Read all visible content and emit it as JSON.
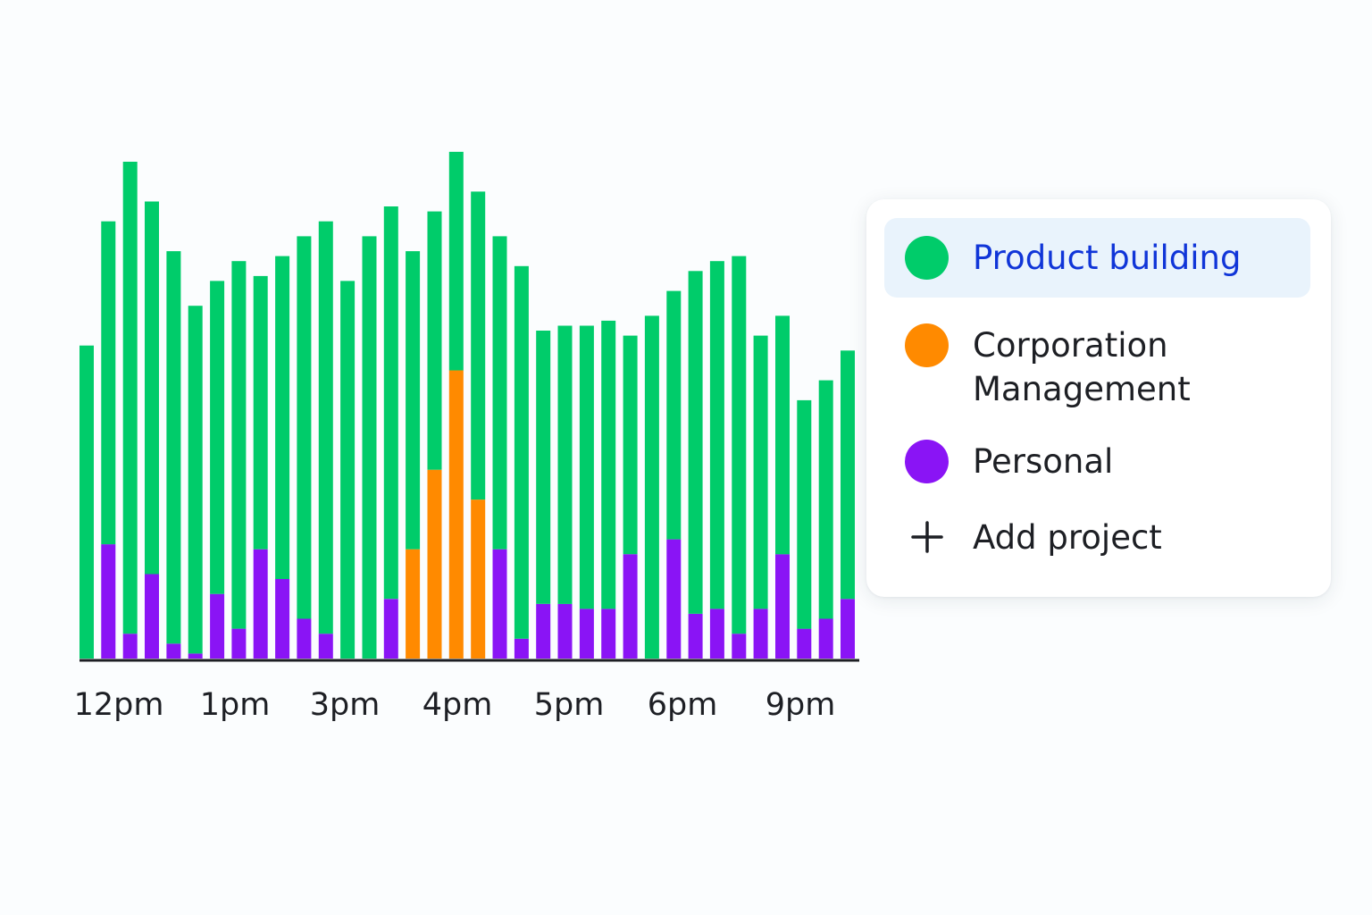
{
  "chart_data": {
    "type": "bar",
    "stacked": true,
    "x_tick_labels": [
      "12pm",
      "1pm",
      "3pm",
      "4pm",
      "5pm",
      "6pm",
      "9pm"
    ],
    "ylim": [
      0,
      100
    ],
    "grid": false,
    "legend_placement": "right",
    "series": [
      {
        "name": "Personal",
        "color": "#8a14f5",
        "values": [
          0,
          23,
          5,
          17,
          3,
          1,
          13,
          6,
          22,
          16,
          8,
          5,
          0,
          0,
          12,
          0,
          0,
          0,
          0,
          22,
          4,
          11,
          11,
          10,
          10,
          21,
          0,
          24,
          9,
          10,
          5,
          10,
          21,
          6,
          8,
          12
        ]
      },
      {
        "name": "Corporation Management",
        "color": "#ff8a00",
        "values": [
          0,
          0,
          0,
          0,
          0,
          0,
          0,
          0,
          0,
          0,
          0,
          0,
          0,
          0,
          0,
          22,
          38,
          58,
          32,
          0,
          0,
          0,
          0,
          0,
          0,
          0,
          0,
          0,
          0,
          0,
          0,
          0,
          0,
          0,
          0,
          0
        ]
      },
      {
        "name": "Product building",
        "color": "#00cc6a",
        "values": [
          63,
          65,
          95,
          75,
          79,
          70,
          63,
          74,
          55,
          65,
          77,
          83,
          76,
          85,
          79,
          60,
          52,
          44,
          62,
          63,
          75,
          55,
          56,
          57,
          58,
          44,
          69,
          50,
          69,
          70,
          76,
          55,
          48,
          46,
          48,
          50
        ]
      }
    ]
  },
  "legend": {
    "items": [
      {
        "label_lines": [
          "Product building"
        ],
        "color": "#00cc6a",
        "active": true,
        "icon": "green-dot-icon"
      },
      {
        "label_lines": [
          "Corporation",
          "Management"
        ],
        "color": "#ff8a00",
        "active": false,
        "icon": "orange-dot-icon"
      },
      {
        "label_lines": [
          "Personal"
        ],
        "color": "#8a14f5",
        "active": false,
        "icon": "purple-dot-icon"
      }
    ],
    "add_label": "Add project",
    "add_icon": "plus-icon"
  },
  "colors": {
    "text": "#1d1f24",
    "active_text": "#1035d8",
    "active_bg": "#e9f3fc",
    "axis": "#1d1f24"
  }
}
